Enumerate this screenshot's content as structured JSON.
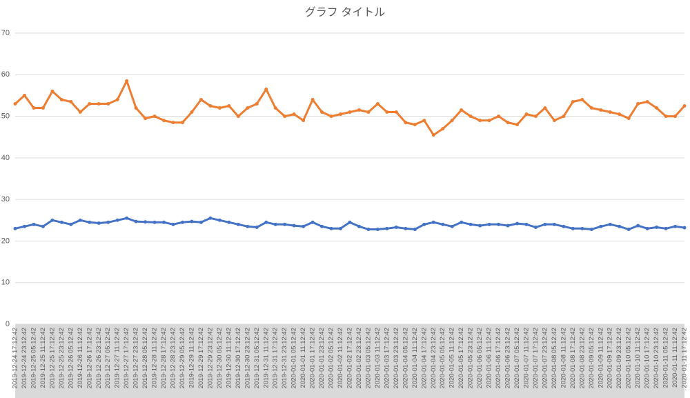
{
  "chart_data": {
    "type": "line",
    "title": "グラフ タイトル",
    "categories": [
      "2019-12-24 17:12:42",
      "2019-12-24 23:12:42",
      "2019-12-25 05:12:42",
      "2019-12-25 11:12:42",
      "2019-12-25 17:12:42",
      "2019-12-25 23:12:42",
      "2019-12-26 05:12:42",
      "2019-12-26 11:12:42",
      "2019-12-26 17:12:42",
      "2019-12-26 23:12:42",
      "2019-12-27 05:12:42",
      "2019-12-27 11:12:42",
      "2019-12-27 17:12:42",
      "2019-12-27 23:12:42",
      "2019-12-28 05:12:42",
      "2019-12-28 11:12:42",
      "2019-12-28 17:12:42",
      "2019-12-28 23:12:42",
      "2019-12-29 05:12:42",
      "2019-12-29 11:12:42",
      "2019-12-29 17:12:42",
      "2019-12-29 23:12:42",
      "2019-12-30 05:12:42",
      "2019-12-30 11:12:42",
      "2019-12-30 17:12:42",
      "2019-12-30 23:12:42",
      "2019-12-31 05:12:42",
      "2019-12-31 11:12:42",
      "2019-12-31 17:12:42",
      "2019-12-31 23:12:42",
      "2020-01-01 05:12:42",
      "2020-01-01 11:12:42",
      "2020-01-01 17:12:42",
      "2020-01-01 23:12:42",
      "2020-01-02 05:12:42",
      "2020-01-02 11:12:42",
      "2020-01-02 17:12:42",
      "2020-01-02 23:12:42",
      "2020-01-03 05:12:42",
      "2020-01-03 11:12:42",
      "2020-01-03 17:12:42",
      "2020-01-03 23:12:42",
      "2020-01-04 05:12:42",
      "2020-01-04 11:12:42",
      "2020-01-04 17:12:42",
      "2020-01-04 23:12:42",
      "2020-01-05 05:12:42",
      "2020-01-05 11:12:42",
      "2020-01-05 17:12:42",
      "2020-01-05 23:12:42",
      "2020-01-06 05:12:42",
      "2020-01-06 11:12:42",
      "2020-01-06 17:12:42",
      "2020-01-06 23:12:42",
      "2020-01-07 05:12:42",
      "2020-01-07 11:12:42",
      "2020-01-07 17:12:42",
      "2020-01-07 23:12:42",
      "2020-01-08 05:12:42",
      "2020-01-08 11:12:42",
      "2020-01-08 17:12:42",
      "2020-01-08 23:12:42",
      "2020-01-09 05:12:42",
      "2020-01-09 11:12:42",
      "2020-01-09 17:12:42",
      "2020-01-09 23:12:42",
      "2020-01-10 05:12:42",
      "2020-01-10 11:12:42",
      "2020-01-10 17:12:42",
      "2020-01-10 23:12:42",
      "2020-01-11 05:12:42",
      "2020-01-11 11:12:42",
      "2020-01-11 17:12:42"
    ],
    "series": [
      {
        "color": "#ed7d31",
        "values": [
          53,
          55,
          52,
          52,
          56,
          54,
          53.5,
          51,
          53,
          53,
          53,
          54,
          58.5,
          52,
          49.5,
          50,
          49,
          48.5,
          48.5,
          51,
          54,
          52.5,
          52,
          52.5,
          50,
          52,
          53,
          56.5,
          52,
          50,
          50.5,
          49,
          54,
          51,
          50,
          50.5,
          51,
          51.5,
          51,
          53,
          51,
          51,
          48.5,
          48,
          49,
          45.5,
          47,
          49,
          51.5,
          50,
          49,
          49,
          50,
          48.5,
          48,
          50.5,
          50,
          52,
          49,
          50,
          53.5,
          54,
          52,
          51.5,
          51,
          50.5,
          49.5,
          53,
          53.5,
          52,
          50,
          50,
          52.5
        ]
      },
      {
        "color": "#4472c4",
        "values": [
          23,
          23.5,
          24,
          23.5,
          25,
          24.5,
          24,
          25,
          24.5,
          24.3,
          24.5,
          25,
          25.5,
          24.7,
          24.6,
          24.5,
          24.5,
          24,
          24.5,
          24.7,
          24.5,
          25.5,
          25,
          24.5,
          24,
          23.5,
          23.3,
          24.5,
          24,
          24,
          23.7,
          23.5,
          24.5,
          23.5,
          23,
          23,
          24.5,
          23.5,
          22.8,
          22.8,
          23,
          23.3,
          23,
          22.8,
          24,
          24.5,
          24,
          23.5,
          24.5,
          24,
          23.7,
          24,
          24,
          23.7,
          24.2,
          24,
          23.3,
          24,
          24,
          23.5,
          23,
          23,
          22.8,
          23.5,
          24,
          23.5,
          22.8,
          23.7,
          23,
          23.3,
          23,
          23.5,
          23.2
        ]
      }
    ],
    "ylim": [
      0,
      70
    ],
    "yticks": [
      0,
      10,
      20,
      30,
      40,
      50,
      60,
      70
    ],
    "grid": true
  }
}
